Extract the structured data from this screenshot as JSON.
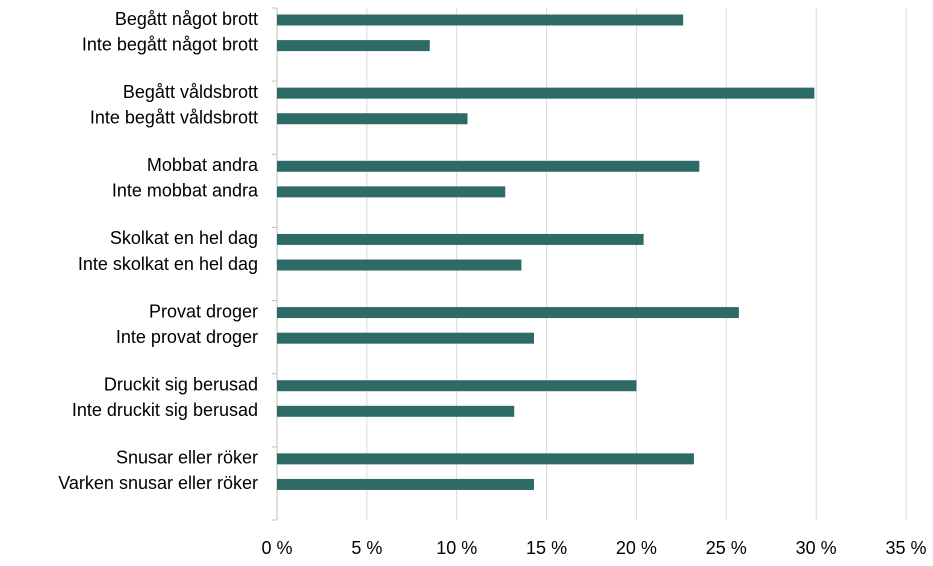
{
  "chart_data": {
    "type": "barh",
    "categories": [
      "Begått något brott",
      "Inte begått något brott",
      "Begått våldsbrott",
      "Inte begått våldsbrott",
      "Mobbat andra",
      "Inte mobbat andra",
      "Skolkat en hel dag",
      "Inte skolkat en hel dag",
      "Provat droger",
      "Inte provat droger",
      "Druckit sig berusad",
      "Inte druckit sig berusad",
      "Snusar eller röker",
      "Varken snusar eller röker"
    ],
    "values": [
      22.6,
      8.5,
      29.9,
      10.6,
      23.5,
      12.7,
      20.4,
      13.6,
      25.7,
      14.3,
      20.0,
      13.2,
      23.2,
      14.3
    ],
    "color": "#2e6b67",
    "xlim": [
      0,
      35
    ],
    "xticks": [
      {
        "value": 0,
        "label": "0 %"
      },
      {
        "value": 5,
        "label": "5 %"
      },
      {
        "value": 10,
        "label": "10 %"
      },
      {
        "value": 15,
        "label": "15 %"
      },
      {
        "value": 20,
        "label": "20 %"
      },
      {
        "value": 25,
        "label": "25 %"
      },
      {
        "value": 30,
        "label": "30 %"
      },
      {
        "value": 35,
        "label": "35 %"
      }
    ],
    "grid": true
  }
}
